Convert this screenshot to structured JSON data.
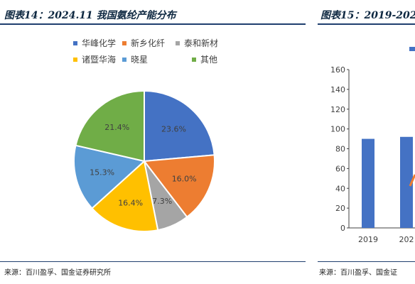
{
  "left_panel": {
    "title": "图表14：2024.11 我国氨纶产能分布",
    "source": "来源：百川盈孚、国金证券研究所"
  },
  "right_panel": {
    "title": "图表15：2019-202",
    "source": "来源：百川盈孚、国金证"
  },
  "chart_data": [
    {
      "type": "pie",
      "title": "",
      "slices": [
        {
          "label": "华峰化学",
          "value": 23.6,
          "display": "23.6%",
          "color": "#4472c4"
        },
        {
          "label": "新乡化纤",
          "value": 16.0,
          "display": "16.0%",
          "color": "#ed7d31"
        },
        {
          "label": "泰和新材",
          "value": 7.3,
          "display": "7.3%",
          "color": "#a5a5a5"
        },
        {
          "label": "诸暨华海",
          "value": 16.4,
          "display": "16.4%",
          "color": "#ffc000"
        },
        {
          "label": "晓星",
          "value": 15.3,
          "display": "15.3%",
          "color": "#5b9bd5"
        },
        {
          "label": "其他",
          "value": 21.4,
          "display": "21.4%",
          "color": "#70ad47"
        }
      ],
      "legend_position": "top"
    },
    {
      "type": "bar",
      "title": "",
      "categories": [
        "2019",
        "202"
      ],
      "values": [
        90,
        92
      ],
      "bar_color": "#4472c4",
      "ylim": [
        0,
        160
      ],
      "yticks": [
        0,
        20,
        40,
        60,
        80,
        100,
        120,
        140,
        160
      ],
      "xlabel": "",
      "ylabel": ""
    }
  ],
  "colors": {
    "accent_line": "#1f3f6e",
    "title_text": "#0e2841",
    "series_line_fragment": "#ed7d31"
  }
}
